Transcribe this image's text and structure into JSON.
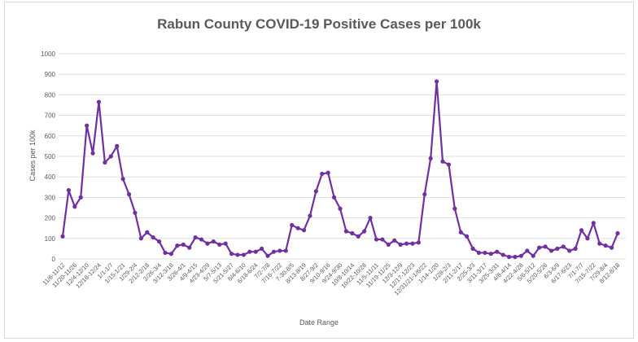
{
  "colors": {
    "line": "#7030a0",
    "grid": "#d9d9d9",
    "text": "#595959"
  },
  "chart_data": {
    "type": "line",
    "title": "Rabun County COVID-19 Positive Cases per 100k",
    "xlabel": "Date Range",
    "ylabel": "Cases per 100k",
    "ylim": [
      0,
      1000
    ],
    "yticks": [
      0,
      100,
      200,
      300,
      400,
      500,
      600,
      700,
      800,
      900,
      1000
    ],
    "grid": true,
    "legend": "none",
    "x_tick_labels": [
      "11/6-11/12",
      "11/20-11/26",
      "12/4-12/10",
      "12/18-12/24",
      "1/1-1/7",
      "1/15-1/21",
      "1/29-2/4",
      "2/12-2/18",
      "2/26-3/4",
      "3/12-3/18",
      "3/26-4/1",
      "4/9-4/15",
      "4/23-4/29",
      "5/7-5/13",
      "5/21-5/27",
      "6/4-6/10",
      "6/18-6/24",
      "7/2-7/8",
      "7/16-7/22",
      "7-30-8/5",
      "8/13-8/19",
      "8/27-9/2",
      "9/10-9/16",
      "9/24-9/30",
      "10/8-10/14",
      "10/22-10/28",
      "11/5-11/11",
      "11/19-11/25",
      "12/3-12/9",
      "12/17-12/23",
      "12/31/21-1/6/22",
      "1/14-1/20",
      "1/28-2/3",
      "2/11-2/17",
      "2/25-3/3",
      "3/11-3/17",
      "3/25-3/31",
      "4/8-4/14",
      "4/22-4/28",
      "5/6-5/12",
      "5/20-5/26",
      "6/3-6/9",
      "6/17-6/23",
      "7/1-7/7",
      "7/15-7/22",
      "7/29-8/4",
      "8/12-8/18"
    ],
    "series": [
      {
        "values": [
          110,
          335,
          255,
          300,
          650,
          515,
          765,
          470,
          500,
          550,
          390,
          315,
          225,
          100,
          130,
          105,
          85,
          30,
          25,
          65,
          70,
          55,
          105,
          95,
          75,
          85,
          70,
          75,
          25,
          20,
          20,
          35,
          35,
          50,
          15,
          35,
          40,
          40,
          165,
          150,
          140,
          210,
          330,
          415,
          420,
          300,
          245,
          135,
          125,
          110,
          135,
          200,
          95,
          95,
          70,
          90,
          70,
          75,
          75,
          80,
          315,
          490,
          865,
          475,
          460,
          245,
          130,
          110,
          50,
          30,
          30,
          25,
          35,
          20,
          10,
          10,
          15,
          40,
          15,
          55,
          60,
          40,
          50,
          60,
          40,
          50,
          140,
          100,
          175,
          75,
          65,
          55,
          125
        ]
      }
    ]
  }
}
